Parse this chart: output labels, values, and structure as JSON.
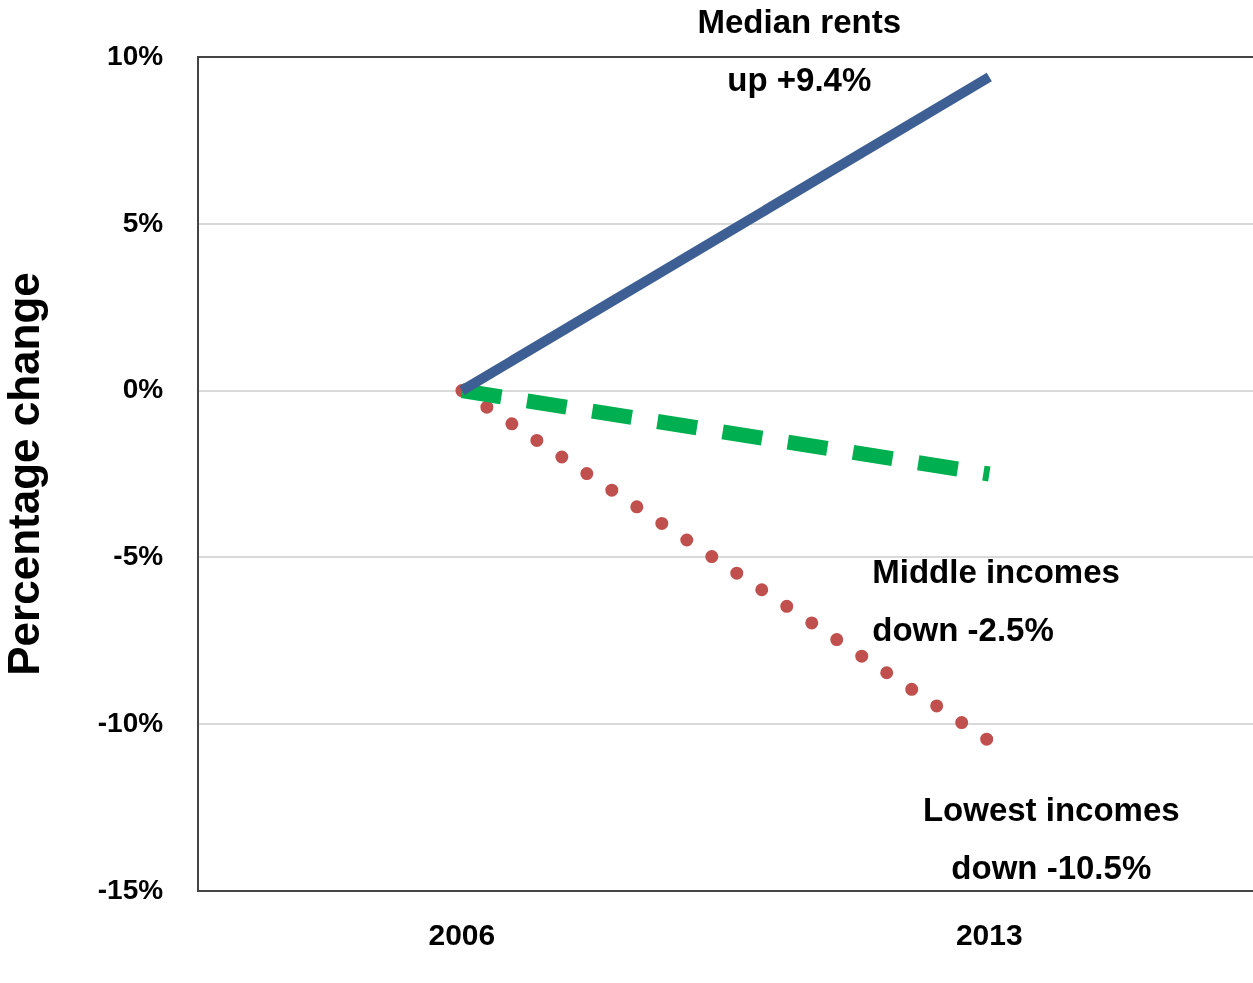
{
  "chart_data": {
    "type": "line",
    "ylabel": "Percentage change",
    "categories": [
      "2006",
      "2013"
    ],
    "series": [
      {
        "color": "#3d5f93",
        "values": [
          0,
          9.4
        ],
        "line_style": "solid"
      },
      {
        "color": "#00b050",
        "values": [
          0,
          -2.5
        ],
        "line_style": "dashed"
      },
      {
        "color": "#c0504d",
        "values": [
          0,
          -10.5
        ],
        "line_style": "dotted"
      }
    ],
    "ylim": [
      -15,
      10
    ],
    "yticks": [
      {
        "value": -15,
        "label": "-15%"
      },
      {
        "value": -10,
        "label": "-10%"
      },
      {
        "value": -5,
        "label": "-5%"
      },
      {
        "value": 0,
        "label": "0%"
      },
      {
        "value": 5,
        "label": "5%"
      },
      {
        "value": 10,
        "label": "10%"
      }
    ],
    "grid": "y",
    "legend": false,
    "marker": "none",
    "annotations": [
      {
        "text": "Median rents\nup +9.4%",
        "x": "2013",
        "y": 9.4
      },
      {
        "text": "Middle incomes\ndown -2.5%",
        "x": "2013",
        "y": -2.5
      },
      {
        "text": "Lowest incomes\ndown -10.5%",
        "x": "2013",
        "y": -10.5
      }
    ]
  }
}
